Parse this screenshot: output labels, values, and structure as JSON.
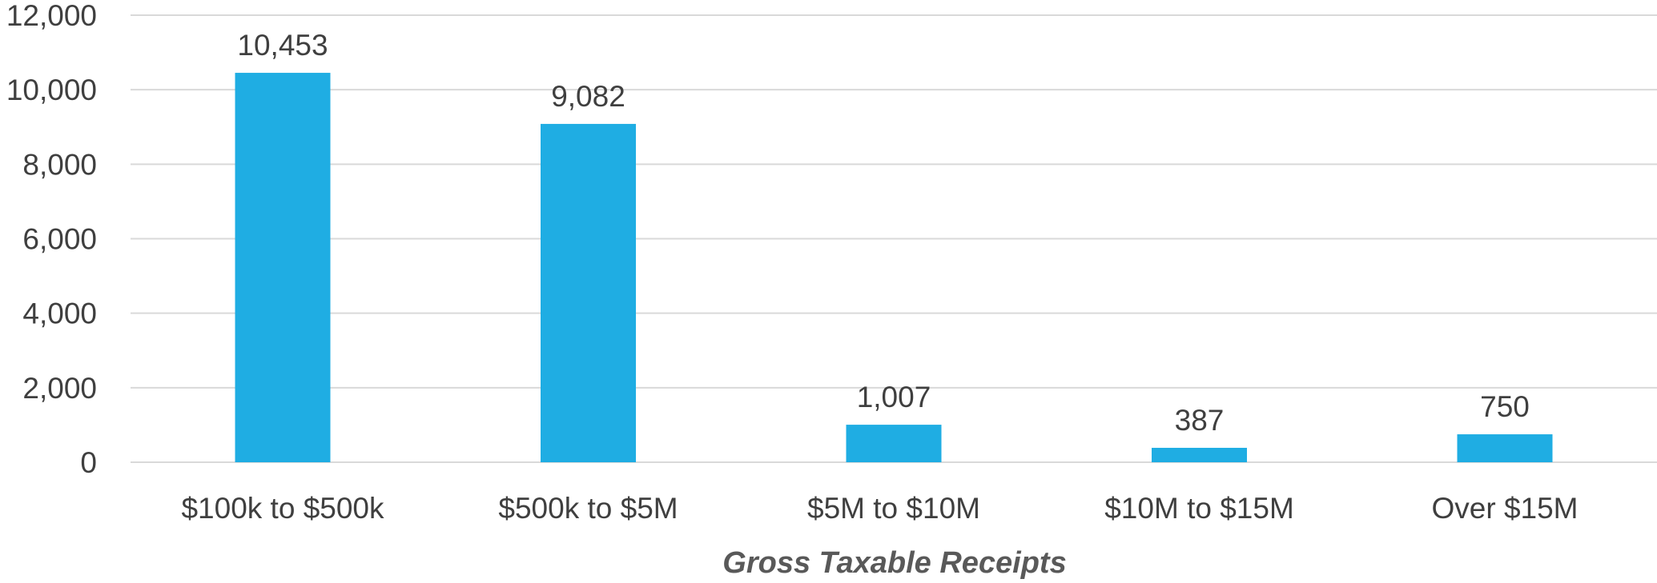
{
  "chart_data": {
    "type": "bar",
    "categories": [
      "$100k to $500k",
      "$500k to $5M",
      "$5M to $10M",
      "$10M to $15M",
      "Over $15M"
    ],
    "values": [
      10453,
      9082,
      1007,
      387,
      750
    ],
    "data_labels": [
      "10,453",
      "9,082",
      "1,007",
      "387",
      "750"
    ],
    "title": "",
    "xlabel": "Gross Taxable Receipts",
    "ylabel": "",
    "ylim": [
      0,
      12000
    ],
    "y_ticks": [
      0,
      2000,
      4000,
      6000,
      8000,
      10000,
      12000
    ],
    "y_tick_labels": [
      "0",
      "2,000",
      "4,000",
      "6,000",
      "8,000",
      "10,000",
      "12,000"
    ],
    "grid": true,
    "legend": "none",
    "bar_color": "#1fade3"
  }
}
